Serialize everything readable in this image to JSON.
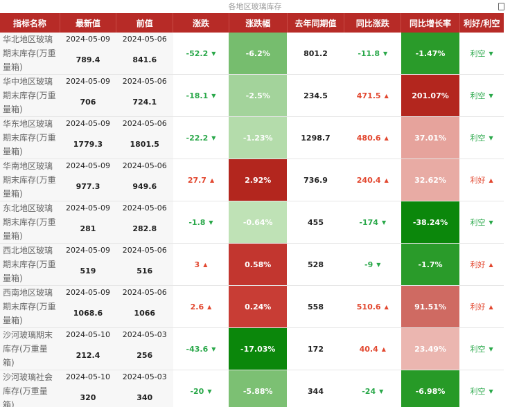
{
  "title": "各地区玻璃库存",
  "headers": [
    "指标名称",
    "最新值",
    "前值",
    "涨跌",
    "涨跌幅",
    "去年同期值",
    "同比涨跌",
    "同比增长率",
    "利好/利空"
  ],
  "rows": [
    {
      "name": "华北地区玻璃期末库存(万重量箱)",
      "latest_date": "2024-05-09",
      "latest": "789.4",
      "prev_date": "2024-05-06",
      "prev": "841.6",
      "change": "-52.2",
      "change_dir": "down",
      "change_pct": "-6.2%",
      "change_pct_color": "#76bd6e",
      "last_year": "801.2",
      "yoy_change": "-11.8",
      "yoy_dir": "down",
      "yoy_pct": "-1.47%",
      "yoy_pct_color": "#2a9b2a",
      "signal": "利空",
      "signal_dir": "down"
    },
    {
      "name": "华中地区玻璃期末库存(万重量箱)",
      "latest_date": "2024-05-09",
      "latest": "706",
      "prev_date": "2024-05-06",
      "prev": "724.1",
      "change": "-18.1",
      "change_dir": "down",
      "change_pct": "-2.5%",
      "change_pct_color": "#a3d39b",
      "last_year": "234.5",
      "yoy_change": "471.5",
      "yoy_dir": "up",
      "yoy_pct": "201.07%",
      "yoy_pct_color": "#b3261e",
      "signal": "利空",
      "signal_dir": "down"
    },
    {
      "name": "华东地区玻璃期末库存(万重量箱)",
      "latest_date": "2024-05-09",
      "latest": "1779.3",
      "prev_date": "2024-05-06",
      "prev": "1801.5",
      "change": "-22.2",
      "change_dir": "down",
      "change_pct": "-1.23%",
      "change_pct_color": "#b4dcab",
      "last_year": "1298.7",
      "yoy_change": "480.6",
      "yoy_dir": "up",
      "yoy_pct": "37.01%",
      "yoy_pct_color": "#e6a39c",
      "signal": "利空",
      "signal_dir": "down"
    },
    {
      "name": "华南地区玻璃期末库存(万重量箱)",
      "latest_date": "2024-05-09",
      "latest": "977.3",
      "prev_date": "2024-05-06",
      "prev": "949.6",
      "change": "27.7",
      "change_dir": "up",
      "change_pct": "2.92%",
      "change_pct_color": "#b3261e",
      "last_year": "736.9",
      "yoy_change": "240.4",
      "yoy_dir": "up",
      "yoy_pct": "32.62%",
      "yoy_pct_color": "#e8aba4",
      "signal": "利好",
      "signal_dir": "up"
    },
    {
      "name": "东北地区玻璃期末库存(万重量箱)",
      "latest_date": "2024-05-09",
      "latest": "281",
      "prev_date": "2024-05-06",
      "prev": "282.8",
      "change": "-1.8",
      "change_dir": "down",
      "change_pct": "-0.64%",
      "change_pct_color": "#bfe2b6",
      "last_year": "455",
      "yoy_change": "-174",
      "yoy_dir": "down",
      "yoy_pct": "-38.24%",
      "yoy_pct_color": "#0b870b",
      "signal": "利空",
      "signal_dir": "down"
    },
    {
      "name": "西北地区玻璃期末库存(万重量箱)",
      "latest_date": "2024-05-09",
      "latest": "519",
      "prev_date": "2024-05-06",
      "prev": "516",
      "change": "3",
      "change_dir": "up",
      "change_pct": "0.58%",
      "change_pct_color": "#c2362f",
      "last_year": "528",
      "yoy_change": "-9",
      "yoy_dir": "down",
      "yoy_pct": "-1.7%",
      "yoy_pct_color": "#2a9b2a",
      "signal": "利好",
      "signal_dir": "up"
    },
    {
      "name": "西南地区玻璃期末库存(万重量箱)",
      "latest_date": "2024-05-09",
      "latest": "1068.6",
      "prev_date": "2024-05-06",
      "prev": "1066",
      "change": "2.6",
      "change_dir": "up",
      "change_pct": "0.24%",
      "change_pct_color": "#c83d35",
      "last_year": "558",
      "yoy_change": "510.6",
      "yoy_dir": "up",
      "yoy_pct": "91.51%",
      "yoy_pct_color": "#cf6a62",
      "signal": "利好",
      "signal_dir": "up"
    },
    {
      "name": "沙河玻璃期末库存(万重量箱)",
      "latest_date": "2024-05-10",
      "latest": "212.4",
      "prev_date": "2024-05-03",
      "prev": "256",
      "change": "-43.6",
      "change_dir": "down",
      "change_pct": "-17.03%",
      "change_pct_color": "#0b870b",
      "last_year": "172",
      "yoy_change": "40.4",
      "yoy_dir": "up",
      "yoy_pct": "23.49%",
      "yoy_pct_color": "#ebb6b0",
      "signal": "利空",
      "signal_dir": "down"
    },
    {
      "name": "沙河玻璃社会库存(万重量箱)",
      "latest_date": "2024-05-10",
      "latest": "320",
      "prev_date": "2024-05-03",
      "prev": "340",
      "change": "-20",
      "change_dir": "down",
      "change_pct": "-5.88%",
      "change_pct_color": "#7cc073",
      "last_year": "344",
      "yoy_change": "-24",
      "yoy_dir": "down",
      "yoy_pct": "-6.98%",
      "yoy_pct_color": "#279a27",
      "signal": "利空",
      "signal_dir": "down"
    }
  ],
  "colors": {
    "header_bg": "#b72b27",
    "up": "#e2472f",
    "down": "#2aa84a"
  }
}
